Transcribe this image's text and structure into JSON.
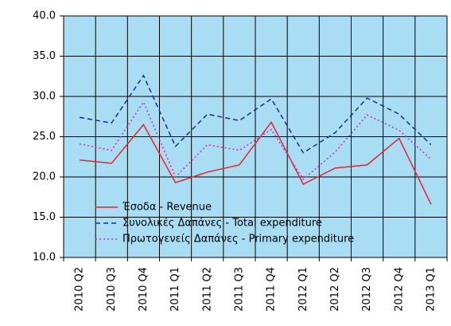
{
  "chart_data": {
    "type": "line",
    "categories": [
      "2010 Q2",
      "2010 Q3",
      "2010 Q4",
      "2011 Q1",
      "2011 Q2",
      "2011 Q3",
      "2011 Q4",
      "2012 Q1",
      "2012 Q2",
      "2012 Q3",
      "2012 Q4",
      "2013 Q1"
    ],
    "series": [
      {
        "name": "Έσοδα - Revenue",
        "color": "#e8262a",
        "dash": "solid",
        "values": [
          22.1,
          21.7,
          26.5,
          19.3,
          20.6,
          21.5,
          26.8,
          19.1,
          21.1,
          21.5,
          24.8,
          16.6
        ]
      },
      {
        "name": "Συνολικές Δαπάνες - Total expenditure",
        "color": "#1f2d8a",
        "dash": "dashed",
        "values": [
          27.4,
          26.7,
          32.6,
          23.8,
          27.8,
          27.0,
          29.7,
          23.0,
          25.5,
          29.8,
          27.8,
          24.0
        ]
      },
      {
        "name": "Πρωτογενείς Δαπάνες - Primary expenditure",
        "color": "#e020c0",
        "dash": "dotted",
        "values": [
          24.1,
          23.3,
          29.3,
          20.0,
          24.0,
          23.3,
          25.9,
          19.7,
          23.1,
          27.7,
          25.8,
          22.2
        ]
      }
    ],
    "ylim": [
      10,
      40
    ],
    "yticks": [
      {
        "value": 10,
        "label": "10.0"
      },
      {
        "value": 15,
        "label": "15.0"
      },
      {
        "value": 20,
        "label": "20.0"
      },
      {
        "value": 25,
        "label": "25.0"
      },
      {
        "value": 30,
        "label": "30.0"
      },
      {
        "value": 35,
        "label": "35.0"
      },
      {
        "value": 40,
        "label": "40.0"
      }
    ],
    "grid": true,
    "background": "#a9ddf3",
    "legend": "lower left"
  }
}
